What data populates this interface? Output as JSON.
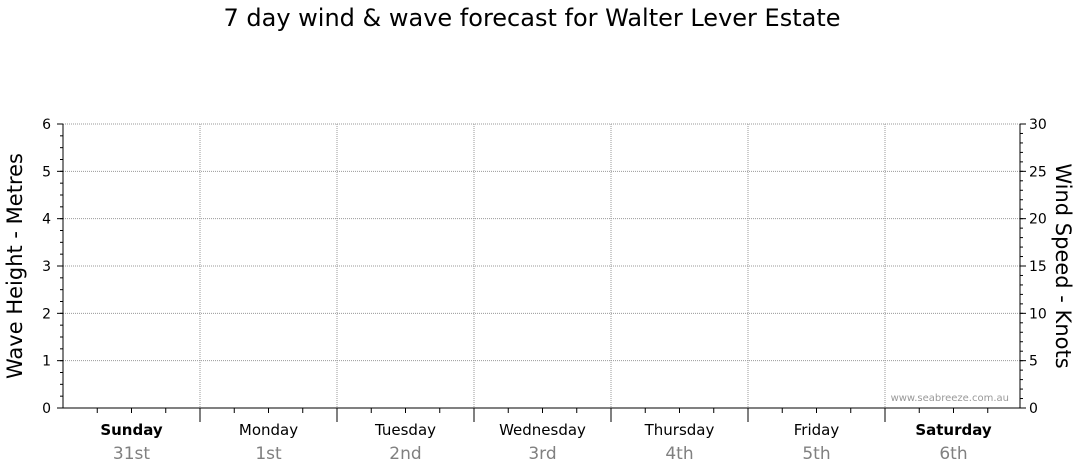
{
  "chart_data": {
    "type": "line",
    "title": "7 day wind & wave forecast for Walter Lever Estate",
    "ylabel_left": "Wave Height - Metres",
    "ylabel_right": "Wind Speed - Knots",
    "y_left": {
      "range": [
        0,
        6
      ],
      "ticks": [
        "0",
        "1",
        "2",
        "3",
        "4",
        "5",
        "6"
      ]
    },
    "y_right": {
      "range": [
        0,
        30
      ],
      "ticks": [
        "0",
        "5",
        "10",
        "15",
        "20",
        "25",
        "30"
      ]
    },
    "days": [
      {
        "name": "Sunday",
        "date": "31st",
        "bold": true
      },
      {
        "name": "Monday",
        "date": "1st",
        "bold": false
      },
      {
        "name": "Tuesday",
        "date": "2nd",
        "bold": false
      },
      {
        "name": "Wednesday",
        "date": "3rd",
        "bold": false
      },
      {
        "name": "Thursday",
        "date": "4th",
        "bold": false
      },
      {
        "name": "Friday",
        "date": "5th",
        "bold": false
      },
      {
        "name": "Saturday",
        "date": "6th",
        "bold": true
      }
    ],
    "series": [],
    "grid": true,
    "watermark": "www.seabreeze.com.au"
  }
}
